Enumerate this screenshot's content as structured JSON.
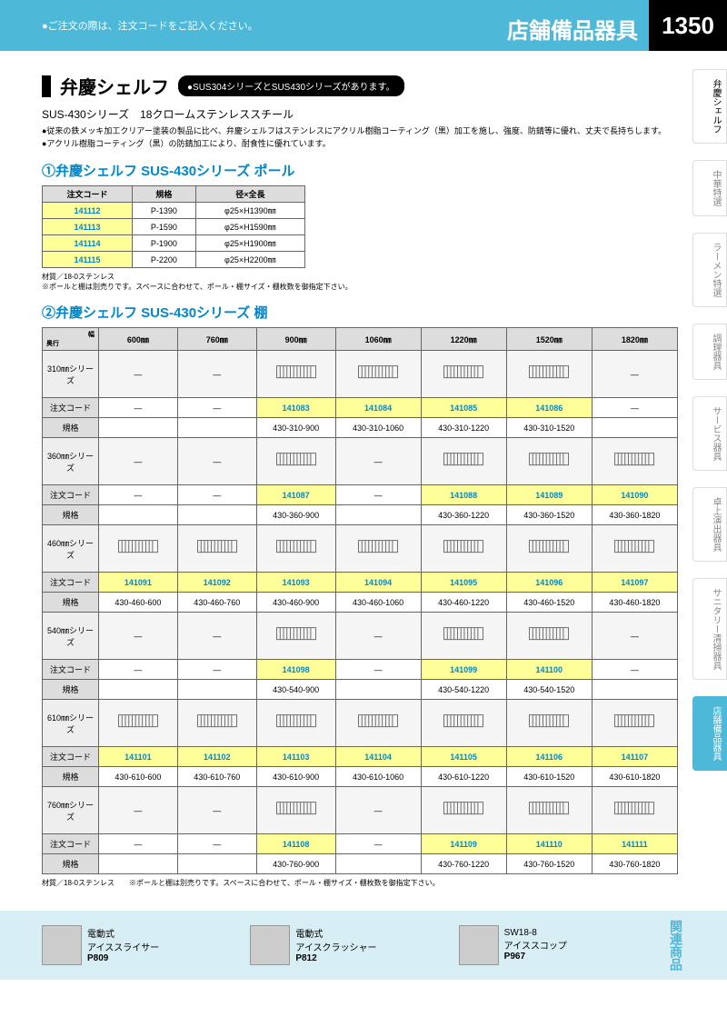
{
  "header": {
    "note": "●ご注文の際は、注文コードをご記入ください。",
    "category": "店舗備品器具",
    "page_no": "1350"
  },
  "side_tabs": [
    "弁慶シェルフ",
    "中華特選",
    "ラーメン特選",
    "調理器具",
    "サービス器具",
    "卓上演出器具",
    "サニタリー清掃器具",
    "店舗備品器具"
  ],
  "title": "弁慶シェルフ",
  "title_note": "●SUS304シリーズとSUS430シリーズがあります。",
  "subtitle": "SUS-430シリーズ　18クロームステンレススチール",
  "bullets": [
    "●従来の鉄メッキ加工クリアー塗装の製品に比べ、弁慶シェルフはステンレスにアクリル樹脂コーティング（黒）加工を施し、強度、防錆等に優れ、丈夫で長持ちします。",
    "●アクリル樹脂コーティング（黒）の防錆加工により、耐食性に優れています。"
  ],
  "section1": {
    "title": "①弁慶シェルフ SUS-430シリーズ ポール",
    "headers": [
      "注文コード",
      "規格",
      "径×全長"
    ],
    "rows": [
      [
        "141112",
        "P-1390",
        "φ25×H1390㎜"
      ],
      [
        "141113",
        "P-1590",
        "φ25×H1590㎜"
      ],
      [
        "141114",
        "P-1900",
        "φ25×H1900㎜"
      ],
      [
        "141115",
        "P-2200",
        "φ25×H2200㎜"
      ]
    ],
    "note": "材質／18-0ステンレス\n※ポールと棚は別売りです。スペースに合わせて、ポール・棚サイズ・棚枚数を御指定下さい。"
  },
  "section2": {
    "title": "②弁慶シェルフ SUS-430シリーズ 棚",
    "col_header_label": "幅",
    "row_header_label": "奥行",
    "widths": [
      "600㎜",
      "760㎜",
      "900㎜",
      "1060㎜",
      "1220㎜",
      "1520㎜",
      "1820㎜"
    ],
    "code_label": "注文コード",
    "spec_label": "規格",
    "series": [
      {
        "name": "310㎜シリーズ",
        "img": [
          0,
          0,
          1,
          1,
          1,
          1,
          0
        ],
        "codes": [
          "—",
          "—",
          "141083",
          "141084",
          "141085",
          "141086",
          "—"
        ],
        "specs": [
          "",
          "",
          "430-310-900",
          "430-310-1060",
          "430-310-1220",
          "430-310-1520",
          ""
        ]
      },
      {
        "name": "360㎜シリーズ",
        "img": [
          0,
          0,
          1,
          0,
          1,
          1,
          1
        ],
        "codes": [
          "—",
          "—",
          "141087",
          "—",
          "141088",
          "141089",
          "141090"
        ],
        "specs": [
          "",
          "",
          "430-360-900",
          "",
          "430-360-1220",
          "430-360-1520",
          "430-360-1820"
        ]
      },
      {
        "name": "460㎜シリーズ",
        "img": [
          1,
          1,
          1,
          1,
          1,
          1,
          1
        ],
        "codes": [
          "141091",
          "141092",
          "141093",
          "141094",
          "141095",
          "141096",
          "141097"
        ],
        "specs": [
          "430-460-600",
          "430-460-760",
          "430-460-900",
          "430-460-1060",
          "430-460-1220",
          "430-460-1520",
          "430-460-1820"
        ]
      },
      {
        "name": "540㎜シリーズ",
        "img": [
          0,
          0,
          1,
          0,
          1,
          1,
          0
        ],
        "codes": [
          "—",
          "—",
          "141098",
          "—",
          "141099",
          "141100",
          "—"
        ],
        "specs": [
          "",
          "",
          "430-540-900",
          "",
          "430-540-1220",
          "430-540-1520",
          ""
        ]
      },
      {
        "name": "610㎜シリーズ",
        "img": [
          1,
          1,
          1,
          1,
          1,
          1,
          1
        ],
        "codes": [
          "141101",
          "141102",
          "141103",
          "141104",
          "141105",
          "141106",
          "141107"
        ],
        "specs": [
          "430-610-600",
          "430-610-760",
          "430-610-900",
          "430-610-1060",
          "430-610-1220",
          "430-610-1520",
          "430-610-1820"
        ]
      },
      {
        "name": "760㎜シリーズ",
        "img": [
          0,
          0,
          1,
          0,
          1,
          1,
          1
        ],
        "codes": [
          "—",
          "—",
          "141108",
          "—",
          "141109",
          "141110",
          "141111"
        ],
        "specs": [
          "",
          "",
          "430-760-900",
          "",
          "430-760-1220",
          "430-760-1520",
          "430-760-1820"
        ]
      }
    ],
    "note": "材質／18-0ステンレス　　※ポールと棚は別売りです。スペースに合わせて、ポール・棚サイズ・棚枚数を御指定下さい。"
  },
  "footer": {
    "items": [
      {
        "name": "電動式\nアイススライサー",
        "page": "P809"
      },
      {
        "name": "電動式\nアイスクラッシャー",
        "page": "P812"
      },
      {
        "name": "SW18-8\nアイススコップ",
        "page": "P967"
      }
    ],
    "label": "関連商品"
  }
}
